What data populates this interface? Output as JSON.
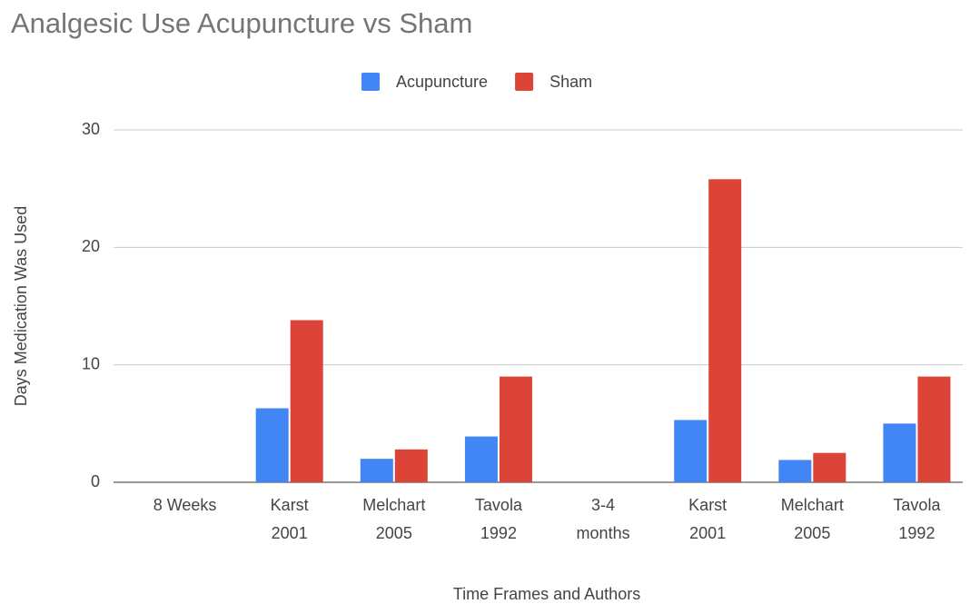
{
  "chart_data": {
    "type": "bar",
    "title": "Analgesic Use Acupuncture vs Sham",
    "x_label": "Time Frames and Authors",
    "y_label": "Days Medication Was Used",
    "categories": [
      [
        "8 Weeks"
      ],
      [
        "Karst",
        "2001"
      ],
      [
        "Melchart",
        "2005"
      ],
      [
        "Tavola",
        "1992"
      ],
      [
        "3-4",
        "months"
      ],
      [
        "Karst",
        "2001"
      ],
      [
        "Melchart",
        "2005"
      ],
      [
        "Tavola",
        "1992"
      ]
    ],
    "series": [
      {
        "name": "Acupuncture",
        "color": "#4285f4",
        "values": [
          null,
          6.3,
          2.0,
          3.9,
          null,
          5.3,
          1.9,
          5.0
        ]
      },
      {
        "name": "Sham",
        "color": "#db4437",
        "values": [
          null,
          13.8,
          2.8,
          9.0,
          null,
          25.8,
          2.5,
          9.0
        ]
      }
    ],
    "ylim": [
      0,
      30
    ],
    "yticks": [
      0,
      10,
      20,
      30
    ],
    "grid": true,
    "legend": "top"
  }
}
